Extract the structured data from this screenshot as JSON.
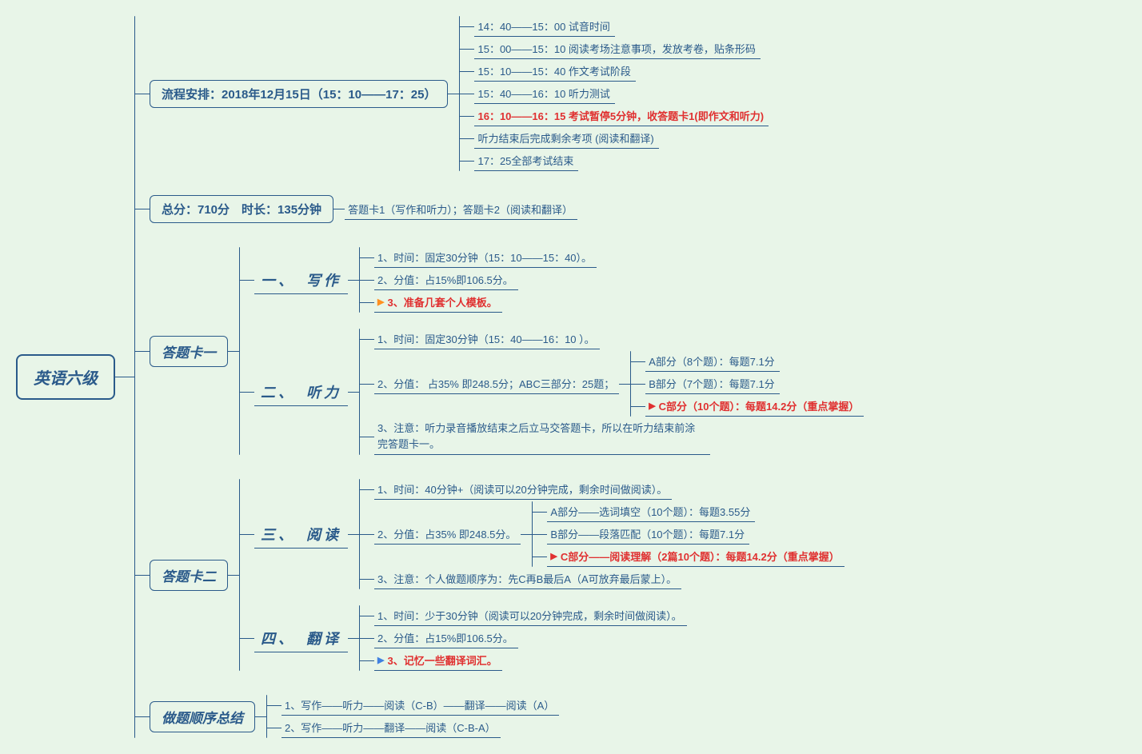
{
  "root": "英语六级",
  "l1_schedule": {
    "title": "流程安排：2018年12月15日（15：10——17：25）",
    "items": [
      {
        "text": "14：40——15：00 试音时间"
      },
      {
        "text": "15：00——15：10 阅读考场注意事项，发放考卷，贴条形码"
      },
      {
        "text": "15：10——15：40 作文考试阶段"
      },
      {
        "text": "15：40——16：10 听力测试"
      },
      {
        "text": "16：10——16：15 考试暂停5分钟，收答题卡1(即作文和听力)",
        "red": true
      },
      {
        "text": "听力结束后完成剩余考项 (阅读和翻译)"
      },
      {
        "text": "17：25全部考试结束"
      }
    ]
  },
  "l2_total": {
    "title": "总分：710分　时长：135分钟",
    "leaf": "答题卡1（写作和听力）；答题卡2（阅读和翻译）"
  },
  "l3_card1": {
    "title": "答题卡一",
    "writing": {
      "title": "一、　写作",
      "items": [
        {
          "text": "1、时间：固定30分钟（15：10——15：40）。"
        },
        {
          "text": "2、分值：占15%即106.5分。"
        },
        {
          "text": "3、准备几套个人模板。",
          "red": true,
          "flag": "orange"
        }
      ]
    },
    "listening": {
      "title": "二、　听力",
      "item1": "1、时间：固定30分钟（15：40——16：10 ）。",
      "item2": "2、分值： 占35% 即248.5分；ABC三部分：25题；",
      "item2_sub": [
        {
          "text": "A部分（8个题）：每题7.1分"
        },
        {
          "text": "B部分（7个题）：每题7.1分"
        },
        {
          "text": "C部分（10个题）：每题14.2分（重点掌握）",
          "red": true,
          "flag": "red"
        }
      ],
      "item3": "3、注意：听力录音播放结束之后立马交答题卡，所以在听力结束前涂完答题卡一。"
    }
  },
  "l4_card2": {
    "title": "答题卡二",
    "reading": {
      "title": "三、　阅读",
      "item1": "1、时间：40分钟+（阅读可以20分钟完成，剩余时间做阅读）。",
      "item2": "2、分值：占35% 即248.5分。",
      "item2_sub": [
        {
          "text": "A部分——选词填空（10个题）：每题3.55分"
        },
        {
          "text": "B部分——段落匹配（10个题）：每题7.1分"
        },
        {
          "text": "C部分——阅读理解（2篇10个题）：每题14.2分（重点掌握）",
          "red": true,
          "flag": "red"
        }
      ],
      "item3": "3、注意：个人做题顺序为：先C再B最后A（A可放弃最后蒙上）。"
    },
    "translation": {
      "title": "四、　翻译",
      "items": [
        {
          "text": "1、时间：少于30分钟（阅读可以20分钟完成，剩余时间做阅读）。"
        },
        {
          "text": "2、分值：占15%即106.5分。"
        },
        {
          "text": "3、记忆一些翻译词汇。",
          "red": true,
          "flag": "blue"
        }
      ]
    }
  },
  "l5_order": {
    "title": "做题顺序总结",
    "items": [
      {
        "text": "1、写作——听力——阅读（C-B）——翻译——阅读（A）"
      },
      {
        "text": "2、写作——听力——翻译——阅读（C-B-A）"
      }
    ]
  }
}
